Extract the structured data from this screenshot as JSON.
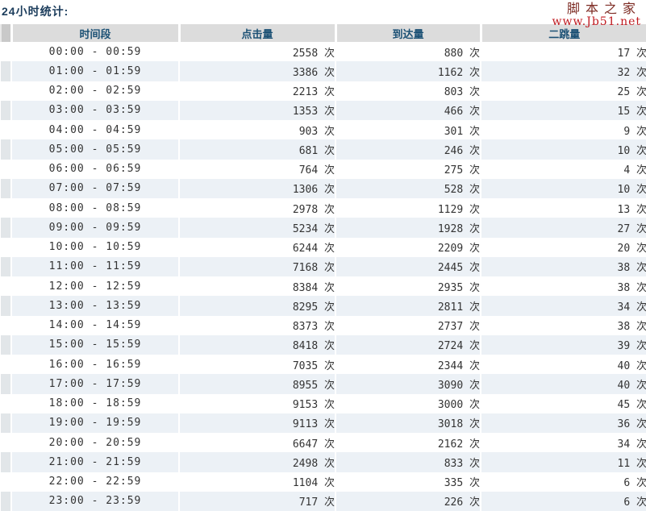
{
  "page": {
    "title": "24小时统计:"
  },
  "watermark": {
    "brand": "脚本之家",
    "site": "www.Jb51.net"
  },
  "table": {
    "unit": "次",
    "columns": [
      "时间段",
      "点击量",
      "到达量",
      "二跳量"
    ],
    "rows": [
      {
        "time": "00:00 - 00:59",
        "clicks": 2558,
        "arrivals": 880,
        "bounces": 17
      },
      {
        "time": "01:00 - 01:59",
        "clicks": 3386,
        "arrivals": 1162,
        "bounces": 32
      },
      {
        "time": "02:00 - 02:59",
        "clicks": 2213,
        "arrivals": 803,
        "bounces": 25
      },
      {
        "time": "03:00 - 03:59",
        "clicks": 1353,
        "arrivals": 466,
        "bounces": 15
      },
      {
        "time": "04:00 - 04:59",
        "clicks": 903,
        "arrivals": 301,
        "bounces": 9
      },
      {
        "time": "05:00 - 05:59",
        "clicks": 681,
        "arrivals": 246,
        "bounces": 10
      },
      {
        "time": "06:00 - 06:59",
        "clicks": 764,
        "arrivals": 275,
        "bounces": 4
      },
      {
        "time": "07:00 - 07:59",
        "clicks": 1306,
        "arrivals": 528,
        "bounces": 10
      },
      {
        "time": "08:00 - 08:59",
        "clicks": 2978,
        "arrivals": 1129,
        "bounces": 13
      },
      {
        "time": "09:00 - 09:59",
        "clicks": 5234,
        "arrivals": 1928,
        "bounces": 27
      },
      {
        "time": "10:00 - 10:59",
        "clicks": 6244,
        "arrivals": 2209,
        "bounces": 20
      },
      {
        "time": "11:00 - 11:59",
        "clicks": 7168,
        "arrivals": 2445,
        "bounces": 38
      },
      {
        "time": "12:00 - 12:59",
        "clicks": 8384,
        "arrivals": 2935,
        "bounces": 38
      },
      {
        "time": "13:00 - 13:59",
        "clicks": 8295,
        "arrivals": 2811,
        "bounces": 34
      },
      {
        "time": "14:00 - 14:59",
        "clicks": 8373,
        "arrivals": 2737,
        "bounces": 38
      },
      {
        "time": "15:00 - 15:59",
        "clicks": 8418,
        "arrivals": 2724,
        "bounces": 39
      },
      {
        "time": "16:00 - 16:59",
        "clicks": 7035,
        "arrivals": 2344,
        "bounces": 40
      },
      {
        "time": "17:00 - 17:59",
        "clicks": 8955,
        "arrivals": 3090,
        "bounces": 40
      },
      {
        "time": "18:00 - 18:59",
        "clicks": 9153,
        "arrivals": 3000,
        "bounces": 45
      },
      {
        "time": "19:00 - 19:59",
        "clicks": 9113,
        "arrivals": 3018,
        "bounces": 36
      },
      {
        "time": "20:00 - 20:59",
        "clicks": 6647,
        "arrivals": 2162,
        "bounces": 34
      },
      {
        "time": "21:00 - 21:59",
        "clicks": 2498,
        "arrivals": 833,
        "bounces": 11
      },
      {
        "time": "22:00 - 22:59",
        "clicks": 1104,
        "arrivals": 335,
        "bounces": 6
      },
      {
        "time": "23:00 - 23:59",
        "clicks": 717,
        "arrivals": 226,
        "bounces": 6
      }
    ]
  }
}
